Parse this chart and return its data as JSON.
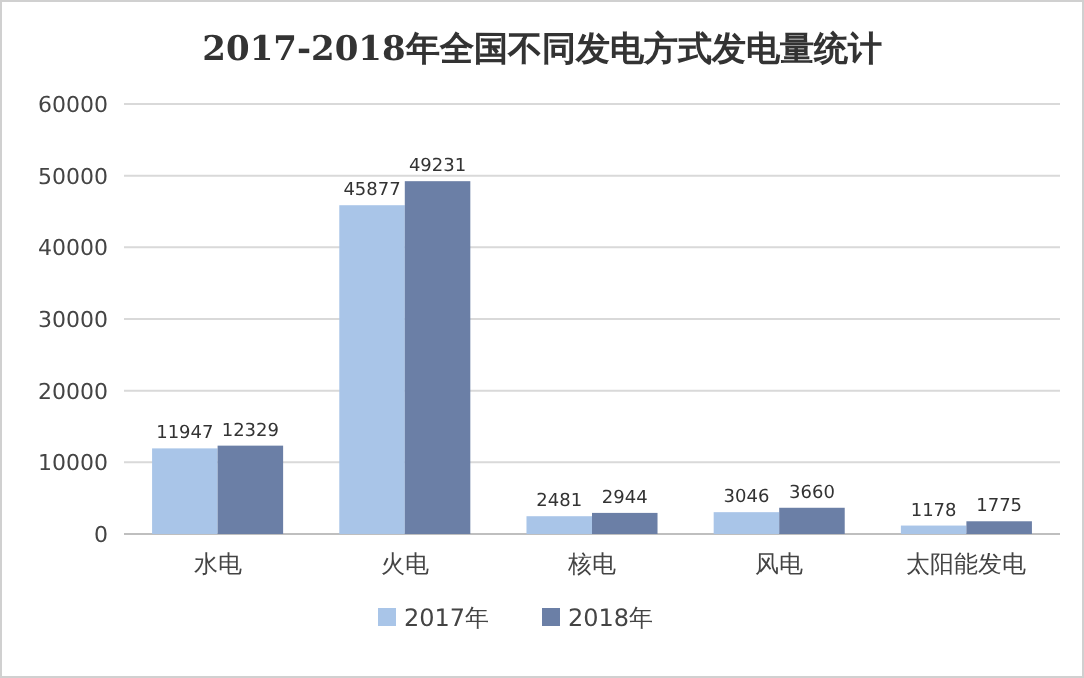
{
  "chart_data": {
    "type": "bar",
    "title": "2017-2018年全国不同发电方式发电量统计",
    "categories": [
      "水电",
      "火电",
      "核电",
      "风电",
      "太阳能发电"
    ],
    "series": [
      {
        "name": "2017年",
        "color": "#a9c5e8",
        "values": [
          11947,
          45877,
          2481,
          3046,
          1178
        ]
      },
      {
        "name": "2018年",
        "color": "#6b7fa6",
        "values": [
          12329,
          49231,
          2944,
          3660,
          1775
        ]
      }
    ],
    "ylim": [
      0,
      60000
    ],
    "yticks": [
      0,
      10000,
      20000,
      30000,
      40000,
      50000,
      60000
    ],
    "grid": "y",
    "legend": "bottom",
    "data_labels": true
  }
}
